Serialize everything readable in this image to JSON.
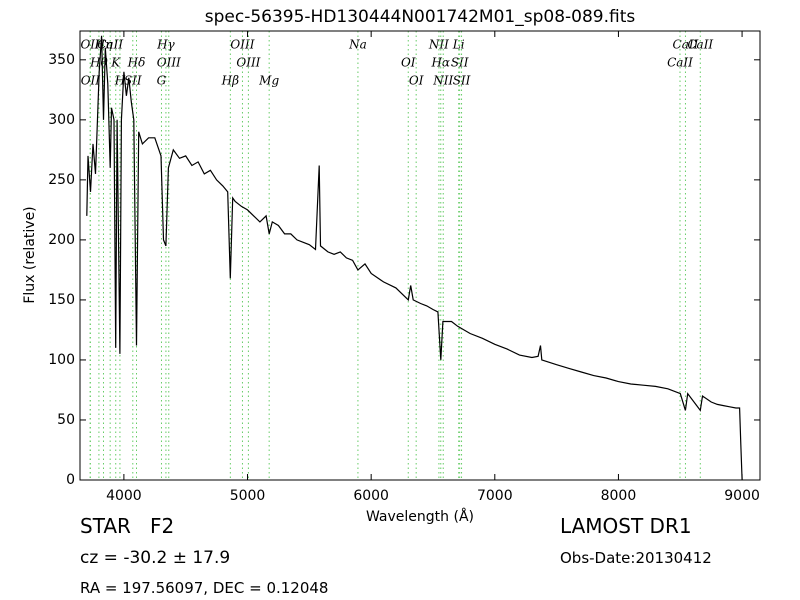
{
  "chart_data": {
    "type": "line",
    "title": "spec-56395-HD130444N001742M01_sp08-089.fits",
    "xlabel": "Wavelength (Å)",
    "ylabel": "Flux (relative)",
    "xlim": [
      3645,
      9145
    ],
    "ylim": [
      0,
      374
    ],
    "xticks": [
      4000,
      5000,
      6000,
      7000,
      8000,
      9000
    ],
    "yticks": [
      0,
      50,
      100,
      150,
      200,
      250,
      300,
      350
    ],
    "color": "#000000",
    "line_color": "#66cc66",
    "x": [
      3700,
      3710,
      3730,
      3750,
      3770,
      3790,
      3800,
      3820,
      3835,
      3850,
      3870,
      3889,
      3900,
      3920,
      3934,
      3945,
      3968,
      3980,
      4000,
      4020,
      4040,
      4060,
      4080,
      4102,
      4120,
      4150,
      4200,
      4250,
      4300,
      4320,
      4340,
      4360,
      4400,
      4450,
      4500,
      4550,
      4600,
      4650,
      4700,
      4750,
      4800,
      4840,
      4861,
      4880,
      4900,
      4950,
      5000,
      5050,
      5100,
      5150,
      5175,
      5200,
      5250,
      5300,
      5350,
      5400,
      5450,
      5500,
      5550,
      5580,
      5590,
      5650,
      5700,
      5750,
      5800,
      5850,
      5893,
      5950,
      6000,
      6100,
      6200,
      6250,
      6300,
      6320,
      6340,
      6400,
      6450,
      6500,
      6540,
      6563,
      6580,
      6650,
      6700,
      6800,
      6900,
      7000,
      7100,
      7200,
      7300,
      7350,
      7370,
      7380,
      7500,
      7600,
      7700,
      7800,
      7900,
      8000,
      8100,
      8200,
      8300,
      8400,
      8500,
      8542,
      8560,
      8662,
      8680,
      8750,
      8800,
      8850,
      8900,
      8950,
      8980,
      8990,
      9000
    ],
    "values": [
      220,
      270,
      240,
      280,
      255,
      310,
      340,
      370,
      300,
      360,
      330,
      260,
      310,
      300,
      110,
      300,
      105,
      300,
      340,
      320,
      335,
      315,
      300,
      112,
      290,
      280,
      285,
      285,
      270,
      200,
      195,
      260,
      275,
      268,
      270,
      262,
      265,
      255,
      258,
      250,
      245,
      240,
      168,
      235,
      232,
      228,
      225,
      220,
      215,
      220,
      205,
      215,
      212,
      205,
      205,
      200,
      198,
      196,
      192,
      262,
      195,
      190,
      188,
      190,
      185,
      183,
      175,
      180,
      172,
      165,
      160,
      155,
      150,
      162,
      150,
      147,
      145,
      142,
      140,
      100,
      132,
      132,
      128,
      122,
      118,
      113,
      109,
      104,
      102,
      103,
      112,
      100,
      96,
      93,
      90,
      87,
      85,
      82,
      80,
      79,
      78,
      76,
      72,
      58,
      72,
      58,
      70,
      65,
      63,
      62,
      61,
      60,
      60,
      30,
      0
    ],
    "spectral_lines": [
      {
        "label": "OII",
        "wavelength": 3727
      },
      {
        "label": "Hθ",
        "wavelength": 3798
      },
      {
        "label": "OII",
        "wavelength": 3729
      },
      {
        "label": "Hη",
        "wavelength": 3835
      },
      {
        "label": "K",
        "wavelength": 3934
      },
      {
        "label": "H",
        "wavelength": 3968
      },
      {
        "label": "CaII",
        "wavelength": 3889
      },
      {
        "label": "Hδ",
        "wavelength": 4102
      },
      {
        "label": "SII",
        "wavelength": 4072
      },
      {
        "label": "Hγ",
        "wavelength": 4340
      },
      {
        "label": "OIII",
        "wavelength": 4363
      },
      {
        "label": "G",
        "wavelength": 4304
      },
      {
        "label": "OIII",
        "wavelength": 4959
      },
      {
        "label": "OIII",
        "wavelength": 5007
      },
      {
        "label": "Hβ",
        "wavelength": 4861
      },
      {
        "label": "Na",
        "wavelength": 5893
      },
      {
        "label": "OI",
        "wavelength": 6300
      },
      {
        "label": "Mg",
        "wavelength": 5175
      },
      {
        "label": "NII",
        "wavelength": 6548
      },
      {
        "label": "Hα",
        "wavelength": 6563
      },
      {
        "label": "OI",
        "wavelength": 6364
      },
      {
        "label": "Li",
        "wavelength": 6708
      },
      {
        "label": "SII",
        "wavelength": 6716
      },
      {
        "label": "NII",
        "wavelength": 6583
      },
      {
        "label": "CaII",
        "wavelength": 8542
      },
      {
        "label": "CaII",
        "wavelength": 8498
      },
      {
        "label": "SII",
        "wavelength": 6731
      },
      {
        "label": "CaII",
        "wavelength": 8662
      }
    ],
    "object_class": "STAR   F2",
    "redshift": "cz = -30.2 ± 17.9",
    "coordinates": "RA = 197.56097, DEC = 0.12048",
    "survey": "LAMOST DR1",
    "obs_date": "Obs-Date:20130412"
  }
}
